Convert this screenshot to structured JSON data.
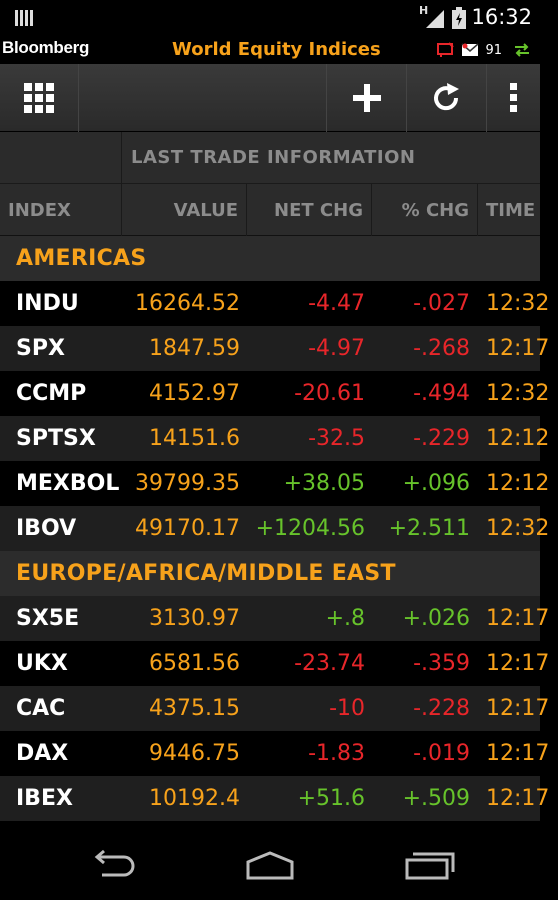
{
  "status": {
    "network_type": "H",
    "time": "16:32"
  },
  "app": {
    "brand": "Bloomberg",
    "title": "World Equity Indices",
    "message_count": "91",
    "accent": "#f7a21b"
  },
  "toolbar": {
    "grid_icon": "grid-icon",
    "add_icon": "plus-icon",
    "refresh_icon": "refresh-icon",
    "overflow_icon": "overflow-menu-icon"
  },
  "table": {
    "section_label": "LAST TRADE INFORMATION",
    "columns": [
      "INDEX",
      "VALUE",
      "NET CHG",
      "% CHG",
      "TIME"
    ]
  },
  "groups": [
    {
      "name": "AMERICAS",
      "rows": [
        {
          "index": "INDU",
          "value": "16264.52",
          "net_chg": "-4.47",
          "pct_chg": "-.027",
          "time": "12:32",
          "direction": "down"
        },
        {
          "index": "SPX",
          "value": "1847.59",
          "net_chg": "-4.97",
          "pct_chg": "-.268",
          "time": "12:17",
          "direction": "down"
        },
        {
          "index": "CCMP",
          "value": "4152.97",
          "net_chg": "-20.61",
          "pct_chg": "-.494",
          "time": "12:32",
          "direction": "down"
        },
        {
          "index": "SPTSX",
          "value": "14151.6",
          "net_chg": "-32.5",
          "pct_chg": "-.229",
          "time": "12:12",
          "direction": "down"
        },
        {
          "index": "MEXBOL",
          "value": "39799.35",
          "net_chg": "+38.05",
          "pct_chg": "+.096",
          "time": "12:12",
          "direction": "up"
        },
        {
          "index": "IBOV",
          "value": "49170.17",
          "net_chg": "+1204.56",
          "pct_chg": "+2.511",
          "time": "12:32",
          "direction": "up"
        }
      ]
    },
    {
      "name": "EUROPE/AFRICA/MIDDLE EAST",
      "rows": [
        {
          "index": "SX5E",
          "value": "3130.97",
          "net_chg": "+.8",
          "pct_chg": "+.026",
          "time": "12:17",
          "direction": "up"
        },
        {
          "index": "UKX",
          "value": "6581.56",
          "net_chg": "-23.74",
          "pct_chg": "-.359",
          "time": "12:17",
          "direction": "down"
        },
        {
          "index": "CAC",
          "value": "4375.15",
          "net_chg": "-10",
          "pct_chg": "-.228",
          "time": "12:17",
          "direction": "down"
        },
        {
          "index": "DAX",
          "value": "9446.75",
          "net_chg": "-1.83",
          "pct_chg": "-.019",
          "time": "12:17",
          "direction": "down"
        },
        {
          "index": "IBEX",
          "value": "10192.4",
          "net_chg": "+51.6",
          "pct_chg": "+.509",
          "time": "12:17",
          "direction": "up"
        }
      ]
    }
  ],
  "navbar": {
    "back_icon": "back-icon",
    "home_icon": "home-icon",
    "recents_icon": "recents-icon"
  }
}
